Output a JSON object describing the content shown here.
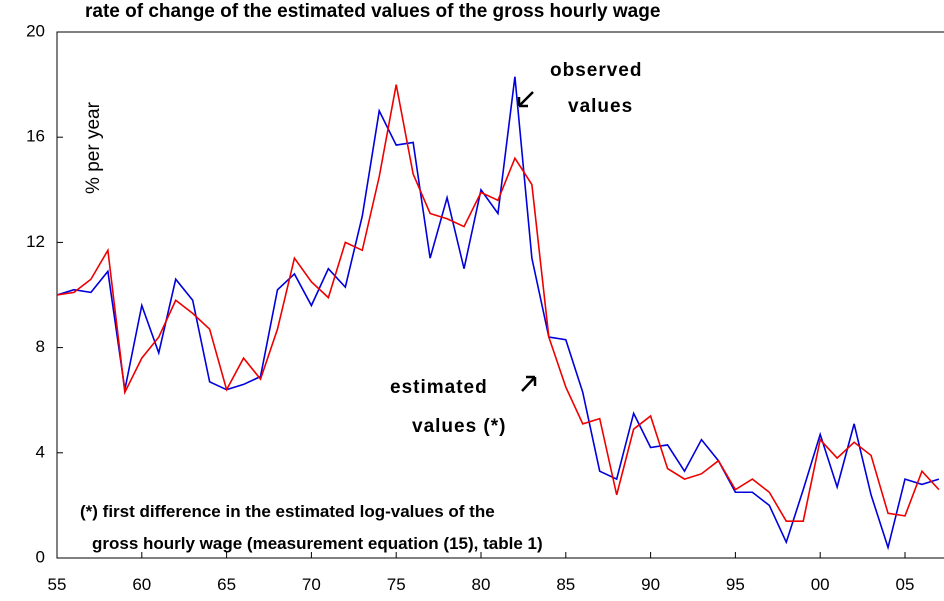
{
  "chart_data": {
    "type": "line",
    "title": "rate of change of the estimated values of the gross hourly wage",
    "y_label": "% per year",
    "x": [
      1955,
      1956,
      1957,
      1958,
      1959,
      1960,
      1961,
      1962,
      1963,
      1964,
      1965,
      1966,
      1967,
      1968,
      1969,
      1970,
      1971,
      1972,
      1973,
      1974,
      1975,
      1976,
      1977,
      1978,
      1979,
      1980,
      1981,
      1982,
      1983,
      1984,
      1985,
      1986,
      1987,
      1988,
      1989,
      1990,
      1991,
      1992,
      1993,
      1994,
      1995,
      1996,
      1997,
      1998,
      1999,
      2000,
      2001,
      2002,
      2003,
      2004,
      2005,
      2006,
      2007
    ],
    "series": [
      {
        "color": "#0000dd",
        "values": [
          10.0,
          10.2,
          10.1,
          10.9,
          6.4,
          9.6,
          7.8,
          10.6,
          9.8,
          6.7,
          6.4,
          6.6,
          6.9,
          10.2,
          10.8,
          9.6,
          11.0,
          10.3,
          13.0,
          17.0,
          15.7,
          15.8,
          11.4,
          13.7,
          11.0,
          14.0,
          13.1,
          18.3,
          11.4,
          8.4,
          8.3,
          6.3,
          3.3,
          3.0,
          5.5,
          4.2,
          4.3,
          3.3,
          4.5,
          3.7,
          2.5,
          2.5,
          2.0,
          0.6,
          2.6,
          4.7,
          2.7,
          5.1,
          2.4,
          0.4,
          3.0,
          2.8,
          3.0
        ]
      },
      {
        "color": "#ee0000",
        "values": [
          10.0,
          10.1,
          10.6,
          11.7,
          6.3,
          7.6,
          8.4,
          9.8,
          9.3,
          8.7,
          6.4,
          7.6,
          6.8,
          8.7,
          11.4,
          10.5,
          9.9,
          12.0,
          11.7,
          14.5,
          18.0,
          14.6,
          13.1,
          12.9,
          12.6,
          13.9,
          13.6,
          15.2,
          14.2,
          8.4,
          6.5,
          5.1,
          5.3,
          2.4,
          4.9,
          5.4,
          3.4,
          3.0,
          3.2,
          3.7,
          2.6,
          3.0,
          2.5,
          1.4,
          1.4,
          4.5,
          3.8,
          4.4,
          3.9,
          1.7,
          1.6,
          3.3,
          2.6
        ]
      }
    ],
    "annotations": [
      "observed",
      "values",
      "estimated",
      "values (*)",
      "(*) first difference in the estimated log-values of the",
      "gross hourly wage (measurement equation (15), table 1)"
    ],
    "xlim": [
      1955,
      2007.3
    ],
    "xticks": [
      {
        "value": 1955,
        "label": "55"
      },
      {
        "value": 1960,
        "label": "60"
      },
      {
        "value": 1965,
        "label": "65"
      },
      {
        "value": 1970,
        "label": "70"
      },
      {
        "value": 1975,
        "label": "75"
      },
      {
        "value": 1980,
        "label": "80"
      },
      {
        "value": 1985,
        "label": "85"
      },
      {
        "value": 1990,
        "label": "90"
      },
      {
        "value": 1995,
        "label": "95"
      },
      {
        "value": 2000,
        "label": "00"
      },
      {
        "value": 2005,
        "label": "05"
      }
    ],
    "ylim": [
      0,
      20
    ],
    "yticks": [
      0,
      4,
      8,
      12,
      16,
      20
    ]
  }
}
